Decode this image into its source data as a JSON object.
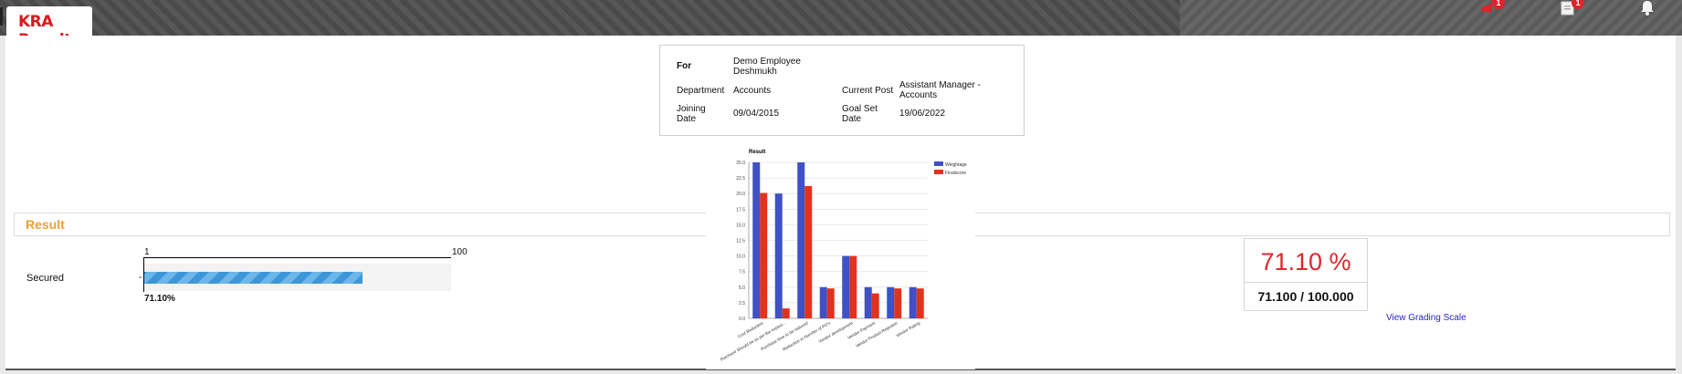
{
  "header": {
    "title": "KRA Result",
    "notifications": [
      {
        "icon": "flag-icon",
        "count": "1"
      },
      {
        "icon": "clipboard-icon",
        "count": "1"
      },
      {
        "icon": "bell-icon",
        "count": ""
      }
    ]
  },
  "employee": {
    "for_label": "For",
    "name_line1": "Demo Employee",
    "name_line2": "Deshmukh",
    "department_label": "Department",
    "department": "Accounts",
    "current_post_label": "Current Post",
    "current_post_line1": "Assistant Manager -",
    "current_post_line2": "Accounts",
    "joining_label_line1": "Joining",
    "joining_label_line2": "Date",
    "joining_date": "09/04/2015",
    "goal_label_line1": "Goal Set",
    "goal_label_line2": "Date",
    "goal_date": "19/06/2022"
  },
  "result": {
    "section_title": "Result",
    "secured_label": "Secured",
    "scale_min": "1",
    "scale_max": "100",
    "dash": "-",
    "secured_fraction": 0.711,
    "secured_text": "71.10%",
    "score_percent": "71.10 %",
    "score_fraction": "71.100 / 100.000",
    "grading_link": "View Grading Scale"
  },
  "colors": {
    "weightage": "#3f51c4",
    "finalscore": "#e0331d",
    "accent_title": "#d7191f"
  },
  "chart_data": {
    "type": "bar",
    "title": "Result",
    "categories": [
      "Cost Reduction",
      "Purchase Should be as per the expect...",
      "Purchase time to be reduced",
      "Reduction in Number of PO's",
      "Vendor development",
      "Vendor Payment",
      "Vendor Product Rejection",
      "Vendor Rating"
    ],
    "series": [
      {
        "name": "Weightage",
        "values": [
          25,
          20,
          25,
          5,
          10,
          5,
          5,
          5
        ]
      },
      {
        "name": "Finalscore",
        "values": [
          20.1,
          1.6,
          21.2,
          4.8,
          10,
          4,
          4.8,
          4.8
        ]
      }
    ],
    "yticks": [
      "0.0",
      "2.5",
      "5.0",
      "7.5",
      "10.0",
      "12.5",
      "15.0",
      "17.5",
      "20.0",
      "22.5",
      "25.0"
    ],
    "ylim": [
      0,
      25
    ],
    "legend": "top-right",
    "grid": true
  }
}
